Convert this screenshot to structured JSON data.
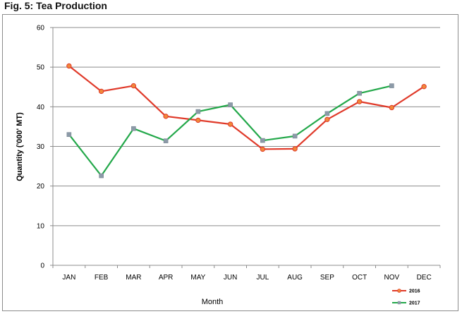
{
  "figure_title": "Fig. 5: Tea Production",
  "chart_data": {
    "type": "line",
    "title": "",
    "xlabel": "Month",
    "ylabel": "Quantity ('000' MT)",
    "categories": [
      "JAN",
      "FEB",
      "MAR",
      "APR",
      "MAY",
      "JUN",
      "JUL",
      "AUG",
      "SEP",
      "OCT",
      "NOV",
      "DEC"
    ],
    "ylim": [
      0,
      60
    ],
    "yticks": [
      0,
      10,
      20,
      30,
      40,
      50,
      60
    ],
    "grid": "horizontal",
    "legend_position": "bottom-right",
    "series": [
      {
        "name": "2016",
        "color": "#e03a2a",
        "marker": "circle",
        "marker_color": "#f0883a",
        "values": [
          50.3,
          43.9,
          45.3,
          37.6,
          36.6,
          35.6,
          29.3,
          29.4,
          36.8,
          41.3,
          39.8,
          45.1
        ]
      },
      {
        "name": "2017",
        "color": "#23a84a",
        "marker": "square",
        "marker_color": "#8c9aa8",
        "values": [
          33.0,
          22.6,
          34.5,
          31.4,
          38.8,
          40.5,
          31.5,
          32.6,
          38.3,
          43.4,
          45.3,
          null
        ]
      }
    ]
  }
}
